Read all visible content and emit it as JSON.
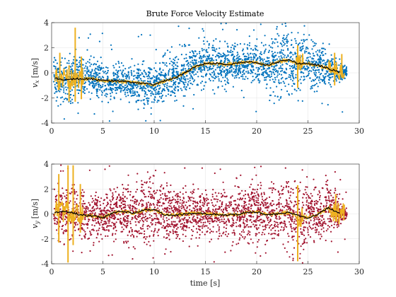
{
  "chart_data": [
    {
      "type": "scatter",
      "title": "Brute Force Velocity Estimate",
      "xlabel": "",
      "ylabel": "v_x [m/s]",
      "ylabel_main": "v",
      "ylabel_sub": "x",
      "ylabel_unit": "[m/s]",
      "xlim": [
        0,
        30
      ],
      "ylim": [
        -4,
        4
      ],
      "xticks": [
        "0",
        "5",
        "10",
        "15",
        "20",
        "25",
        "30"
      ],
      "yticks": [
        "-4",
        "-2",
        "0",
        "2",
        "4"
      ],
      "grid": true,
      "colors": {
        "scatter": "#0072BD",
        "smoothed": "#EDB120",
        "mean": "#000000"
      },
      "trend": {
        "x": [
          0.3,
          1,
          2,
          3,
          4,
          5,
          6,
          7,
          8,
          9,
          10,
          11,
          12,
          13,
          14,
          15,
          16,
          17,
          18,
          19,
          20,
          21,
          22,
          23,
          24,
          25,
          26,
          27,
          28
        ],
        "y": [
          -0.4,
          -0.55,
          -0.5,
          -0.45,
          -0.5,
          -0.6,
          -0.65,
          -0.7,
          -0.75,
          -0.85,
          -0.95,
          -0.65,
          -0.4,
          0.0,
          0.5,
          0.75,
          0.75,
          0.65,
          0.75,
          0.9,
          0.8,
          0.6,
          0.85,
          1.05,
          0.75,
          0.75,
          0.6,
          0.35,
          0.05
        ]
      },
      "spread": {
        "x": [
          0,
          2,
          3,
          5,
          8,
          10,
          12,
          14,
          15,
          17,
          20,
          21,
          22,
          23,
          24,
          26,
          27,
          28.5
        ],
        "y": [
          0.8,
          1.2,
          0.9,
          0.8,
          0.9,
          1.1,
          1.0,
          1.0,
          1.2,
          1.0,
          1.0,
          1.1,
          1.6,
          1.8,
          1.3,
          1.1,
          0.8,
          0.3
        ]
      }
    },
    {
      "type": "scatter",
      "title": "",
      "xlabel": "time [s]",
      "xlabel_main": "time",
      "xlabel_unit": "[s]",
      "ylabel": "v_y [m/s]",
      "ylabel_main": "v",
      "ylabel_sub": "y",
      "ylabel_unit": "[m/s]",
      "xlim": [
        0,
        30
      ],
      "ylim": [
        -4,
        4
      ],
      "xticks": [
        "0",
        "5",
        "10",
        "15",
        "20",
        "25",
        "30"
      ],
      "yticks": [
        "-4",
        "-2",
        "0",
        "2",
        "4"
      ],
      "grid": true,
      "colors": {
        "scatter": "#A2142F",
        "smoothed": "#EDB120",
        "mean": "#000000"
      },
      "trend": {
        "x": [
          0.3,
          1,
          2,
          3,
          4,
          5,
          6,
          7,
          8,
          9,
          10,
          11,
          12,
          13,
          14,
          15,
          16,
          17,
          18,
          19,
          20,
          21,
          22,
          23,
          24,
          25,
          26,
          27,
          28
        ],
        "y": [
          0.1,
          0.2,
          0.1,
          -0.1,
          -0.15,
          -0.3,
          0.1,
          0.2,
          0.05,
          0.3,
          0.35,
          -0.05,
          -0.1,
          0.0,
          0.05,
          0.0,
          -0.05,
          -0.1,
          -0.05,
          0.1,
          0.15,
          -0.05,
          0.0,
          0.1,
          -0.1,
          -0.3,
          0.0,
          0.5,
          0.05
        ]
      },
      "spread": {
        "x": [
          0,
          2,
          3,
          5,
          8,
          10,
          12,
          14,
          16,
          18,
          20,
          22,
          23,
          24,
          26,
          27,
          28.5
        ],
        "y": [
          1.2,
          1.6,
          1.3,
          1.0,
          1.4,
          1.6,
          1.2,
          1.3,
          1.2,
          1.3,
          1.6,
          1.5,
          1.6,
          1.4,
          1.3,
          1.5,
          0.3
        ]
      }
    }
  ]
}
